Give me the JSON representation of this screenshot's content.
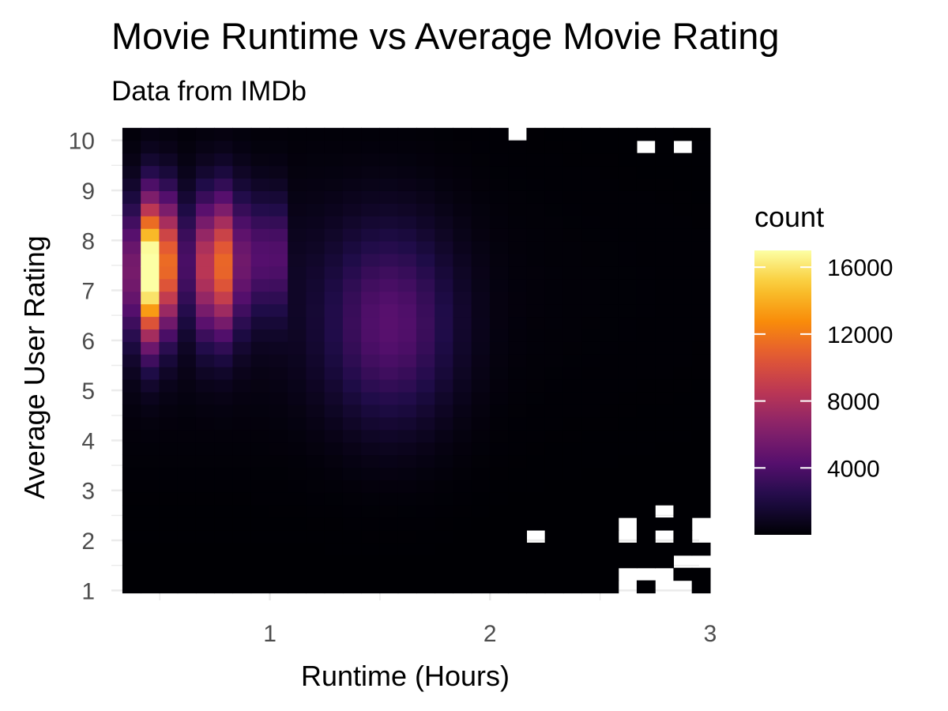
{
  "chart_data": {
    "type": "heatmap",
    "title": "Movie Runtime vs Average Movie Rating",
    "subtitle": "Data from IMDb",
    "xlabel": "Runtime (Hours)",
    "ylabel": "Average User Rating",
    "xlim": [
      0.28,
      2.95
    ],
    "ylim": [
      0.8,
      10.2
    ],
    "x_ticks": [
      "1",
      "2",
      "3"
    ],
    "y_ticks": [
      "1",
      "2",
      "3",
      "4",
      "5",
      "6",
      "7",
      "8",
      "9",
      "10"
    ],
    "bins": {
      "x_start": 0.33,
      "x_end": 3.0,
      "x_count": 32,
      "y_start": 0.95,
      "y_end": 10.25,
      "y_count": 37
    },
    "grid": true,
    "colorscale": "inferno",
    "legend": {
      "title": "count",
      "position": "right",
      "min": 0,
      "max": 17000,
      "ticks": [
        "4000",
        "8000",
        "12000",
        "16000"
      ]
    },
    "hotspots": [
      {
        "runtime_hours": 0.45,
        "rating": 7.4,
        "count": 17000
      },
      {
        "runtime_hours": 0.75,
        "rating": 7.5,
        "count": 11500
      },
      {
        "runtime_hours": 1.0,
        "rating": 7.7,
        "count": 5000
      },
      {
        "runtime_hours": 1.55,
        "rating": 6.3,
        "count": 4000
      },
      {
        "runtime_hours": 0.55,
        "rating": 7.6,
        "count": 7500
      },
      {
        "runtime_hours": 0.85,
        "rating": 7.6,
        "count": 4500
      }
    ],
    "empty_bins": [
      [
        2.1,
        10.1
      ],
      [
        2.7,
        9.9
      ],
      [
        2.85,
        9.9
      ],
      [
        2.2,
        2.0
      ],
      [
        2.6,
        2.3
      ],
      [
        2.6,
        2.0
      ],
      [
        2.75,
        2.6
      ],
      [
        2.8,
        2.0
      ],
      [
        2.85,
        1.7
      ],
      [
        2.95,
        2.3
      ],
      [
        2.95,
        2.0
      ],
      [
        2.95,
        1.7
      ],
      [
        2.6,
        1.3
      ],
      [
        2.6,
        1.0
      ],
      [
        2.7,
        1.3
      ],
      [
        2.75,
        1.0
      ],
      [
        2.8,
        1.3
      ],
      [
        2.85,
        1.0
      ]
    ]
  }
}
